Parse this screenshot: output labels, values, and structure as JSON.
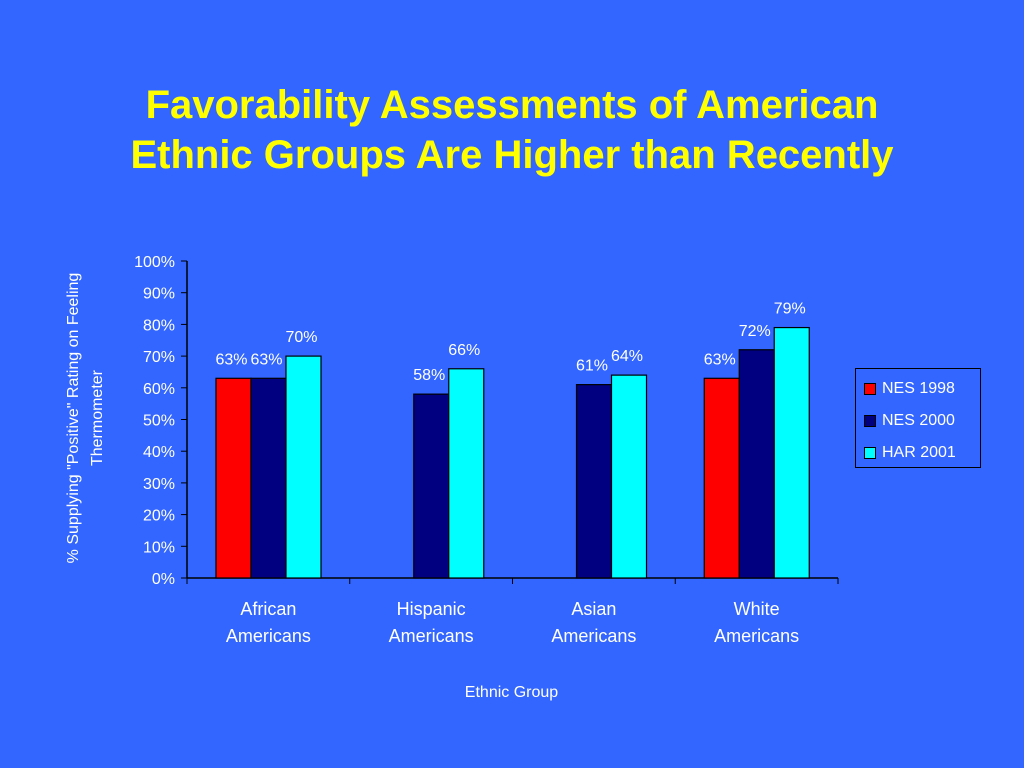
{
  "title": {
    "line1": "Favorability Assessments of American",
    "line2": "Ethnic Groups Are Higher than Recently"
  },
  "colors": {
    "background": "#3366FF",
    "title": "#FFFF00",
    "text": "#FFFFFF",
    "series": [
      "#FF0000",
      "#000080",
      "#00FFFF"
    ]
  },
  "chart_data": {
    "type": "bar",
    "categories": [
      [
        "African",
        "Americans"
      ],
      [
        "Hispanic",
        "Americans"
      ],
      [
        "Asian",
        "Americans"
      ],
      [
        "White",
        "Americans"
      ]
    ],
    "series": [
      {
        "name": "NES 1998",
        "values": [
          63,
          null,
          null,
          63
        ],
        "labels": [
          "63%",
          null,
          null,
          "63%"
        ]
      },
      {
        "name": "NES 2000",
        "values": [
          63,
          58,
          61,
          72
        ],
        "labels": [
          "63%",
          "58%",
          "61%",
          "72%"
        ]
      },
      {
        "name": "HAR 2001",
        "values": [
          70,
          66,
          64,
          79
        ],
        "labels": [
          "70%",
          "66%",
          "64%",
          "79%"
        ]
      }
    ],
    "xlabel": "Ethnic Group",
    "ylabel": [
      "% Supplying \"Positive\" Rating on Feeling",
      "Thermometer"
    ],
    "ylim": [
      0,
      100
    ],
    "yticks": [
      "0%",
      "10%",
      "20%",
      "30%",
      "40%",
      "50%",
      "60%",
      "70%",
      "80%",
      "90%",
      "100%"
    ],
    "grid": false,
    "legend_position": "right"
  }
}
